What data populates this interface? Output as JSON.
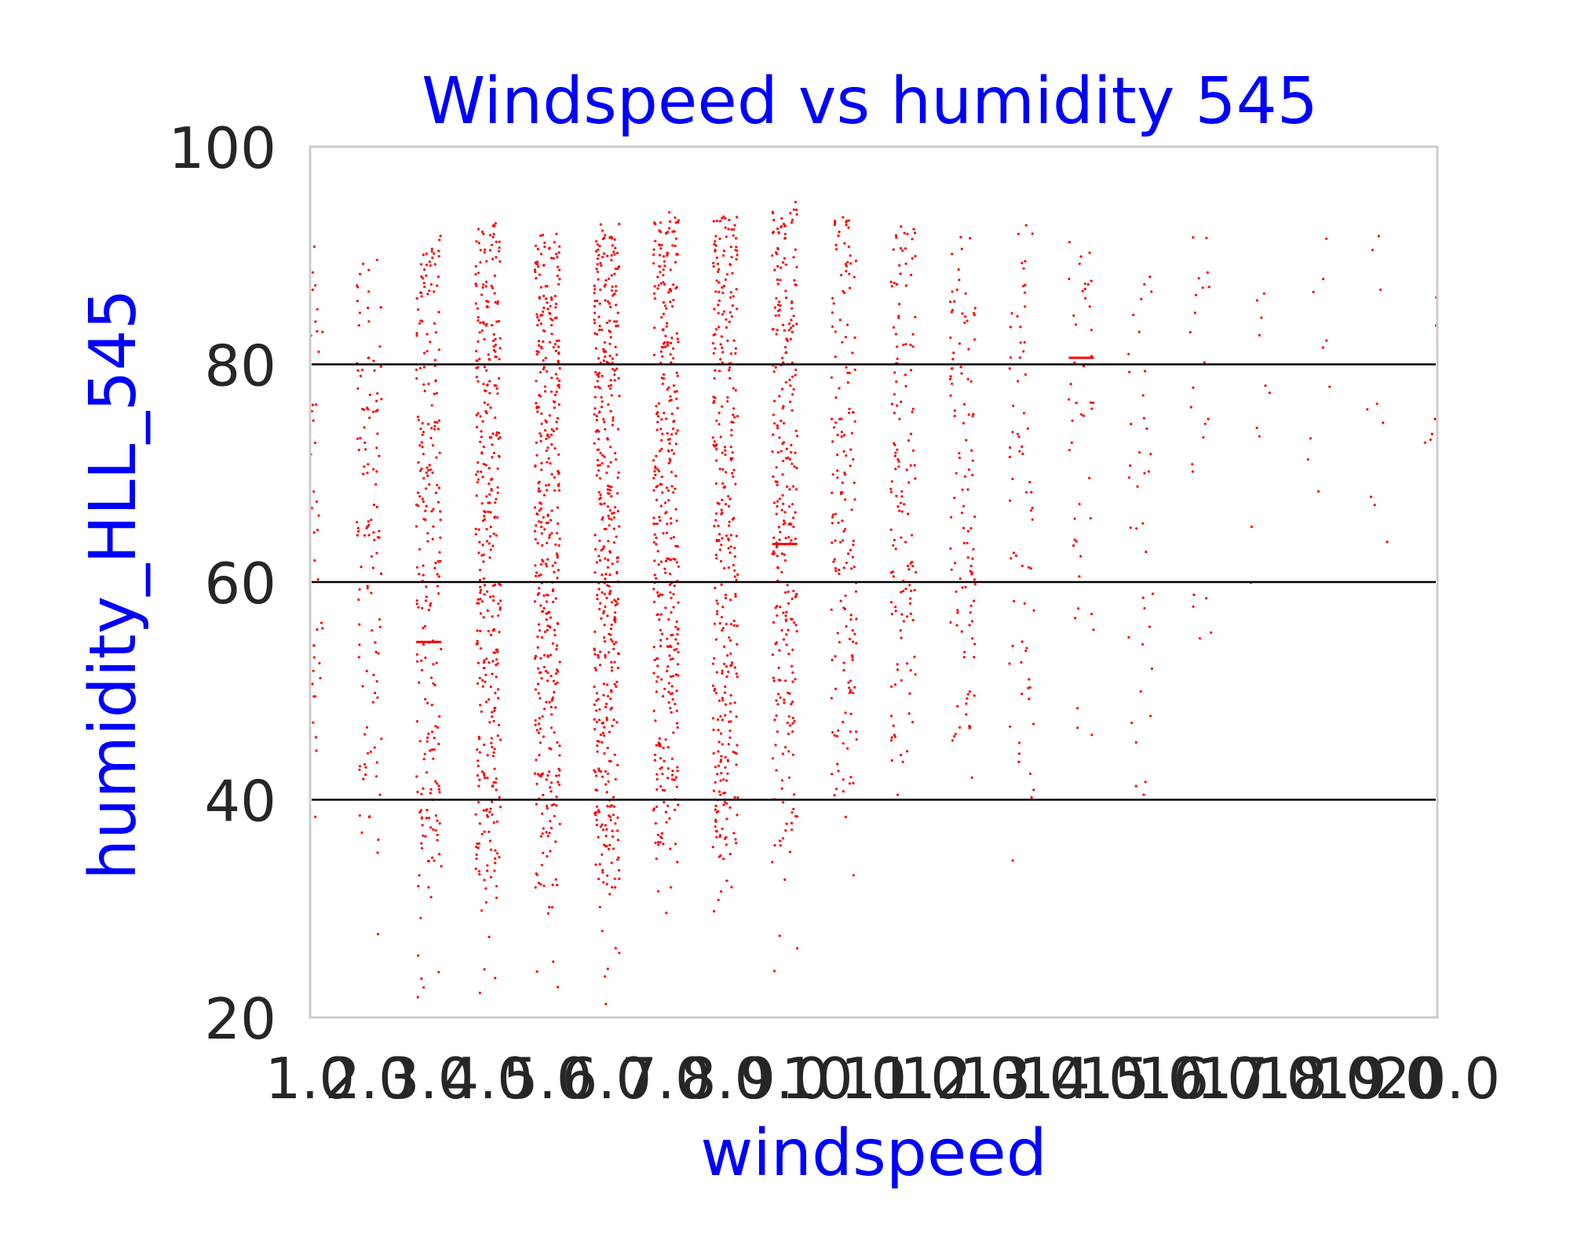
{
  "chart_data": {
    "type": "scatter",
    "title": "Windspeed vs humidity 545",
    "xlabel": "windspeed",
    "ylabel": "humidity_HLL_545",
    "xlim": [
      1.0,
      20.0
    ],
    "ylim": [
      20,
      100
    ],
    "x_categories": [
      "1.0",
      "2.0",
      "3.0",
      "4.0",
      "5.0",
      "6.0",
      "7.0",
      "8.0",
      "9.0",
      "10.0",
      "11.0",
      "12.0",
      "13.0",
      "14.0",
      "15.0",
      "16.0",
      "17.0",
      "18.0",
      "19.0",
      "20.0"
    ],
    "y_ticks": [
      "20",
      "40",
      "60",
      "80",
      "100"
    ],
    "y_tick_values": [
      20,
      40,
      60,
      80,
      100
    ],
    "hlines": [
      40,
      60,
      80
    ],
    "grid": false,
    "legend": "none",
    "colors": {
      "points": "#ff0000",
      "hlines": "#000000",
      "title": "#0000ff",
      "labels": "#0000ff",
      "ticks": "#262626",
      "frame": "#cccccc"
    },
    "series": [
      {
        "style": "strip",
        "points_per_category": [
          40,
          120,
          230,
          350,
          380,
          420,
          360,
          330,
          280,
          170,
          140,
          110,
          70,
          45,
          38,
          22,
          10,
          9,
          9,
          6
        ],
        "y_min_per_category": [
          28,
          26,
          21,
          21,
          21,
          21,
          25,
          23,
          23,
          31,
          33,
          36,
          30,
          45,
          32,
          47,
          47,
          57,
          52,
          52
        ],
        "y_max_per_category": [
          91,
          90,
          92,
          93,
          92,
          93,
          94,
          94,
          95,
          94,
          93,
          93,
          93,
          92,
          89,
          94,
          92,
          92,
          92,
          87
        ],
        "medians": [
          null,
          null,
          54.5,
          null,
          null,
          null,
          null,
          null,
          63.5,
          null,
          null,
          null,
          null,
          80.6,
          null,
          null,
          null,
          null,
          null,
          null
        ]
      }
    ]
  }
}
